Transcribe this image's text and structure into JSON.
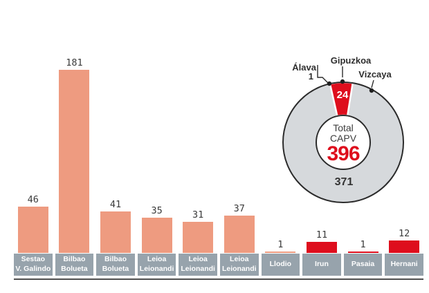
{
  "colors": {
    "salmon": "#ee9b80",
    "red": "#de0e1d",
    "label_box_gray": "#97a3ac",
    "ring_gray": "#d6d9dc",
    "outline_dark": "#2b2b2b",
    "axis_line": "#4f4f4f",
    "value_text": "#3a3a3a",
    "white": "#ffffff"
  },
  "chart_data": [
    {
      "type": "bar",
      "title": "",
      "categories": [
        "Sestao V. Galindo",
        "Bilbao Bolueta",
        "Bilbao Bolueta",
        "Leioa Leionandi",
        "Leioa Leionandi",
        "Leioa Leionandi",
        "Llodio",
        "Irun",
        "Pasaia",
        "Hernani"
      ],
      "category_label_lines": [
        [
          "Sestao",
          "V. Galindo"
        ],
        [
          "Bilbao",
          "Bolueta"
        ],
        [
          "Bilbao",
          "Bolueta"
        ],
        [
          "Leioa",
          "Leionandi"
        ],
        [
          "Leioa",
          "Leionandi"
        ],
        [
          "Leioa",
          "Leionandi"
        ],
        [
          "Llodio"
        ],
        [
          "Irun"
        ],
        [
          "Pasaia"
        ],
        [
          "Hernani"
        ]
      ],
      "values": [
        46,
        181,
        41,
        35,
        31,
        37,
        1,
        11,
        1,
        12
      ],
      "bar_colors": [
        "salmon",
        "salmon",
        "salmon",
        "salmon",
        "salmon",
        "salmon",
        "salmon",
        "red",
        "red",
        "red"
      ],
      "xlabel": "",
      "ylabel": "",
      "ylim": [
        0,
        190
      ],
      "grid": false,
      "value_labels_position": "above bars",
      "category_labels_style": "white text in gray boxes"
    },
    {
      "type": "pie",
      "subtype": "donut",
      "total": 396,
      "slices": [
        {
          "label": "Álava",
          "value": 1,
          "color": "ring_gray",
          "callout_value": "1"
        },
        {
          "label": "Gipuzkoa",
          "value": 24,
          "color": "red",
          "in_slice_label": "24"
        },
        {
          "label": "Vizcaya",
          "value": 371,
          "color": "ring_gray",
          "in_slice_label": "371"
        }
      ],
      "center_text": {
        "line1": "Total",
        "line2": "CAPV",
        "value": "396"
      },
      "rotation_deg": -12.7,
      "legend_position": "callout labels with leader lines and dots"
    }
  ]
}
